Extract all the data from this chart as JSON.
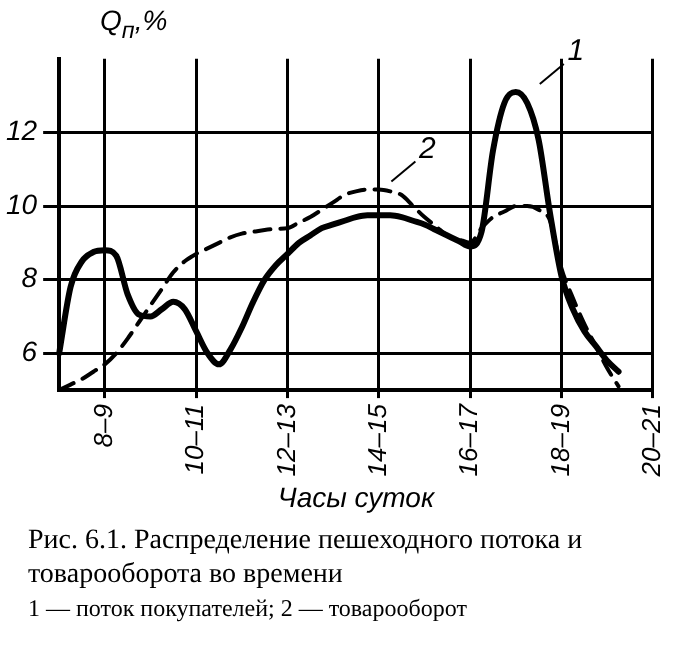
{
  "chart_data": {
    "type": "line",
    "ylabel": "Q$_{п}$,%",
    "xlabel": "Часы суток",
    "annotations": [
      "Рис. 6.1. Распределение пешеходного потока и товарооборота во времени",
      "1 — поток покупателей; 2 — товарооборот"
    ],
    "categories": [
      null,
      null,
      null,
      null,
      "8–9",
      null,
      null,
      null,
      null,
      null,
      null,
      null,
      "10–11",
      null,
      null,
      null,
      null,
      null,
      null,
      null,
      "12–13",
      null,
      null,
      null,
      null,
      null,
      null,
      null,
      "14–15",
      null,
      null,
      null,
      null,
      null,
      null,
      null,
      "16–17",
      null,
      null,
      null,
      null,
      null,
      null,
      null,
      "18–19",
      null,
      null,
      null,
      null,
      null,
      null,
      null,
      "20–21"
    ],
    "ylim": [
      5,
      14
    ],
    "yticks": [
      6,
      8,
      10,
      12
    ],
    "grid": true,
    "legend": false,
    "series": [
      {
        "name": "1",
        "color": "#000000",
        "line_style": "solid",
        "values": [
          6.0,
          7.8,
          8.5,
          8.75,
          8.8,
          8.65,
          7.6,
          7.05,
          7.0,
          7.2,
          7.4,
          7.2,
          6.6,
          6.0,
          5.7,
          6.1,
          6.7,
          7.4,
          8.0,
          8.4,
          8.7,
          9.0,
          9.2,
          9.4,
          9.5,
          9.6,
          9.7,
          9.75,
          9.75,
          9.75,
          9.7,
          9.6,
          9.5,
          9.35,
          9.2,
          9.05,
          8.9,
          9.3,
          11.5,
          12.8,
          13.1,
          12.8,
          11.8,
          9.8,
          8.1,
          7.2,
          6.6,
          6.2,
          5.8,
          5.5,
          null,
          null,
          null
        ]
      },
      {
        "name": "2",
        "color": "#000000",
        "line_style": "dashed",
        "values": [
          5.0,
          5.15,
          5.3,
          5.5,
          5.7,
          6.0,
          6.4,
          6.85,
          7.3,
          7.75,
          8.2,
          8.5,
          8.7,
          8.85,
          9.0,
          9.15,
          9.25,
          9.3,
          9.35,
          9.38,
          9.4,
          9.55,
          9.7,
          9.9,
          10.1,
          10.3,
          10.4,
          10.45,
          10.45,
          10.4,
          10.3,
          10.0,
          9.7,
          9.45,
          9.2,
          9.1,
          9.0,
          9.4,
          9.7,
          9.85,
          10.0,
          10.0,
          9.9,
          9.6,
          8.3,
          7.5,
          6.8,
          6.2,
          5.6,
          5.1,
          null,
          null,
          null
        ]
      }
    ]
  }
}
